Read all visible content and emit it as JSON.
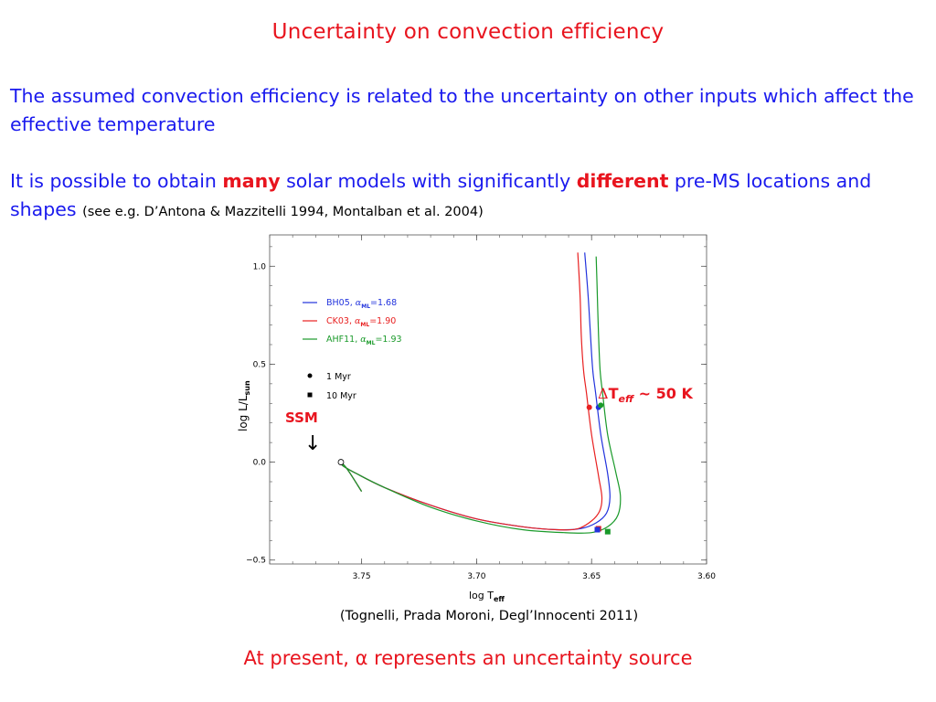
{
  "slide": {
    "title": "Uncertainty on convection efficiency",
    "para1": "The assumed convection efficiency is related to the uncertainty on other inputs which affect the effective temperature",
    "para2_a": "It is possible to obtain ",
    "para2_many": "many",
    "para2_b": " solar models with significantly ",
    "para2_different": "different",
    "para2_c": "  pre-MS locations and shapes ",
    "para2_cite": "(see e.g. D’Antona & Mazzitelli 1994, Montalban et al. 2004)",
    "caption": "(Tognelli, Prada Moroni, Degl’Innocenti 2011)",
    "bottom_text": "At present, α represents an uncertainty source"
  },
  "chart_data": {
    "type": "line",
    "xlabel": "log T",
    "xlabel_sub": "eff",
    "ylabel": "log  L/L",
    "ylabel_sub": "sun",
    "xlim": [
      3.79,
      3.6
    ],
    "ylim": [
      -0.52,
      1.16
    ],
    "x_ticks": [
      "3.75",
      "3.70",
      "3.65",
      "3.60"
    ],
    "y_ticks": [
      "1.0",
      "0.5",
      "0.0",
      "−0.5"
    ],
    "colors": {
      "BH05": "#2233dd",
      "CK03": "#e82020",
      "AHF11": "#1a9a2a"
    },
    "legend": [
      {
        "name": "BH05",
        "alpha": "1.68",
        "color": "#2233dd"
      },
      {
        "name": "CK03",
        "alpha": "1.90",
        "color": "#e82020"
      },
      {
        "name": "AHF11",
        "alpha": "1.93",
        "color": "#1a9a2a"
      }
    ],
    "marker_legend": [
      {
        "symbol": "circle",
        "label": "1 Myr"
      },
      {
        "symbol": "square",
        "label": "10 Myr"
      }
    ],
    "series": [
      {
        "name": "BH05",
        "x": [
          3.653,
          3.6515,
          3.6505,
          3.6495,
          3.6482,
          3.646,
          3.643,
          3.642,
          3.6435,
          3.648,
          3.655,
          3.665,
          3.68,
          3.7,
          3.72,
          3.74,
          3.752,
          3.758,
          3.759,
          3.756,
          3.75
        ],
        "y": [
          1.07,
          0.85,
          0.65,
          0.47,
          0.35,
          0.14,
          -0.06,
          -0.18,
          -0.26,
          -0.31,
          -0.34,
          -0.345,
          -0.33,
          -0.29,
          -0.22,
          -0.13,
          -0.06,
          -0.02,
          0.0,
          -0.04,
          -0.15
        ]
      },
      {
        "name": "CK03",
        "x": [
          3.656,
          3.655,
          3.6545,
          3.6535,
          3.6522,
          3.65,
          3.647,
          3.6455,
          3.6465,
          3.65,
          3.656,
          3.665,
          3.68,
          3.7,
          3.72,
          3.74,
          3.752,
          3.758,
          3.759,
          3.756,
          3.75
        ],
        "y": [
          1.07,
          0.85,
          0.65,
          0.47,
          0.35,
          0.14,
          -0.07,
          -0.18,
          -0.25,
          -0.3,
          -0.34,
          -0.345,
          -0.33,
          -0.29,
          -0.22,
          -0.13,
          -0.06,
          -0.02,
          0.0,
          -0.04,
          -0.15
        ]
      },
      {
        "name": "AHF11",
        "x": [
          3.648,
          3.6475,
          3.647,
          3.6463,
          3.6452,
          3.643,
          3.6395,
          3.6375,
          3.6385,
          3.643,
          3.65,
          3.662,
          3.68,
          3.7,
          3.72,
          3.74,
          3.752,
          3.758,
          3.759,
          3.756,
          3.75
        ],
        "y": [
          1.05,
          0.85,
          0.65,
          0.47,
          0.35,
          0.14,
          -0.05,
          -0.17,
          -0.27,
          -0.33,
          -0.36,
          -0.36,
          -0.345,
          -0.3,
          -0.23,
          -0.13,
          -0.06,
          -0.02,
          0.0,
          -0.04,
          -0.15
        ]
      }
    ],
    "points_1Myr": [
      {
        "series": "CK03",
        "x": 3.651,
        "y": 0.28
      },
      {
        "series": "BH05",
        "x": 3.647,
        "y": 0.28
      },
      {
        "series": "AHF11",
        "x": 3.646,
        "y": 0.29
      }
    ],
    "points_10Myr": [
      {
        "series": "CK03",
        "x": 3.647,
        "y": -0.34
      },
      {
        "series": "BH05",
        "x": 3.6475,
        "y": -0.345
      },
      {
        "series": "AHF11",
        "x": 3.643,
        "y": -0.355
      }
    ],
    "annotations": {
      "ssm_label": "SSM",
      "ssm_arrow": "↓",
      "ssm_point": {
        "x": 3.759,
        "y": 0.0
      },
      "dteff_delta": "Δ",
      "dteff_T": "T",
      "dteff_sub": "eff",
      "dteff_text": " ~ 50 K"
    }
  }
}
